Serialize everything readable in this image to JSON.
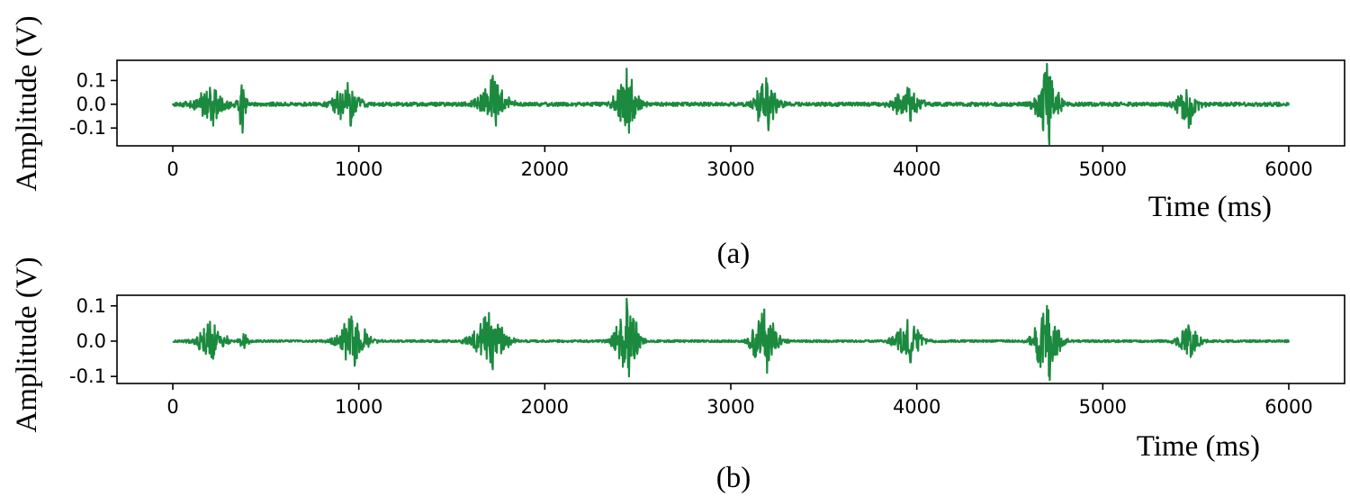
{
  "colors": {
    "signal": "#1b8a3e",
    "axes": "#000000",
    "background": "#ffffff"
  },
  "chart_data": [
    {
      "panel": "(a)",
      "type": "line",
      "xlabel": "Time (ms)",
      "ylabel": "Amplitude (V)",
      "xlim": [
        -300,
        6300
      ],
      "ylim": [
        -0.175,
        0.185
      ],
      "xticks": [
        0,
        1000,
        2000,
        3000,
        4000,
        5000,
        6000
      ],
      "yticks": [
        0.1,
        0.0,
        -0.1
      ],
      "ytick_labels": [
        "0.1",
        "0.0",
        "-0.1"
      ],
      "grid": false,
      "legend": "none",
      "bursts": [
        {
          "center": 200,
          "peak_pos": 0.07,
          "peak_neg": -0.09,
          "width": 120
        },
        {
          "center": 370,
          "peak_pos": 0.08,
          "peak_neg": -0.12,
          "width": 40
        },
        {
          "center": 940,
          "peak_pos": 0.09,
          "peak_neg": -0.09,
          "width": 110
        },
        {
          "center": 1720,
          "peak_pos": 0.12,
          "peak_neg": -0.09,
          "width": 110
        },
        {
          "center": 2440,
          "peak_pos": 0.15,
          "peak_neg": -0.12,
          "width": 90
        },
        {
          "center": 3190,
          "peak_pos": 0.11,
          "peak_neg": -0.11,
          "width": 90
        },
        {
          "center": 3950,
          "peak_pos": 0.07,
          "peak_neg": -0.07,
          "width": 110
        },
        {
          "center": 4700,
          "peak_pos": 0.17,
          "peak_neg": -0.17,
          "width": 90
        },
        {
          "center": 5450,
          "peak_pos": 0.06,
          "peak_neg": -0.1,
          "width": 90
        }
      ],
      "baseline_noise": 0.008,
      "x_end": 6000
    },
    {
      "panel": "(b)",
      "type": "line",
      "xlabel": "Time (ms)",
      "ylabel": "Amplitude (V)",
      "xlim": [
        -300,
        6300
      ],
      "ylim": [
        -0.12,
        0.13
      ],
      "xticks": [
        0,
        1000,
        2000,
        3000,
        4000,
        5000,
        6000
      ],
      "yticks": [
        0.1,
        0.0,
        -0.1
      ],
      "ytick_labels": [
        "0.1",
        "0.0",
        "-0.1"
      ],
      "grid": false,
      "legend": "none",
      "bursts": [
        {
          "center": 200,
          "peak_pos": 0.055,
          "peak_neg": -0.05,
          "width": 110
        },
        {
          "center": 380,
          "peak_pos": 0.02,
          "peak_neg": -0.02,
          "width": 40
        },
        {
          "center": 960,
          "peak_pos": 0.07,
          "peak_neg": -0.07,
          "width": 120
        },
        {
          "center": 1700,
          "peak_pos": 0.08,
          "peak_neg": -0.08,
          "width": 130
        },
        {
          "center": 2440,
          "peak_pos": 0.12,
          "peak_neg": -0.1,
          "width": 90
        },
        {
          "center": 3180,
          "peak_pos": 0.09,
          "peak_neg": -0.09,
          "width": 100
        },
        {
          "center": 3950,
          "peak_pos": 0.06,
          "peak_neg": -0.06,
          "width": 110
        },
        {
          "center": 4700,
          "peak_pos": 0.1,
          "peak_neg": -0.11,
          "width": 100
        },
        {
          "center": 5460,
          "peak_pos": 0.045,
          "peak_neg": -0.045,
          "width": 90
        }
      ],
      "baseline_noise": 0.003,
      "x_end": 6000
    }
  ]
}
